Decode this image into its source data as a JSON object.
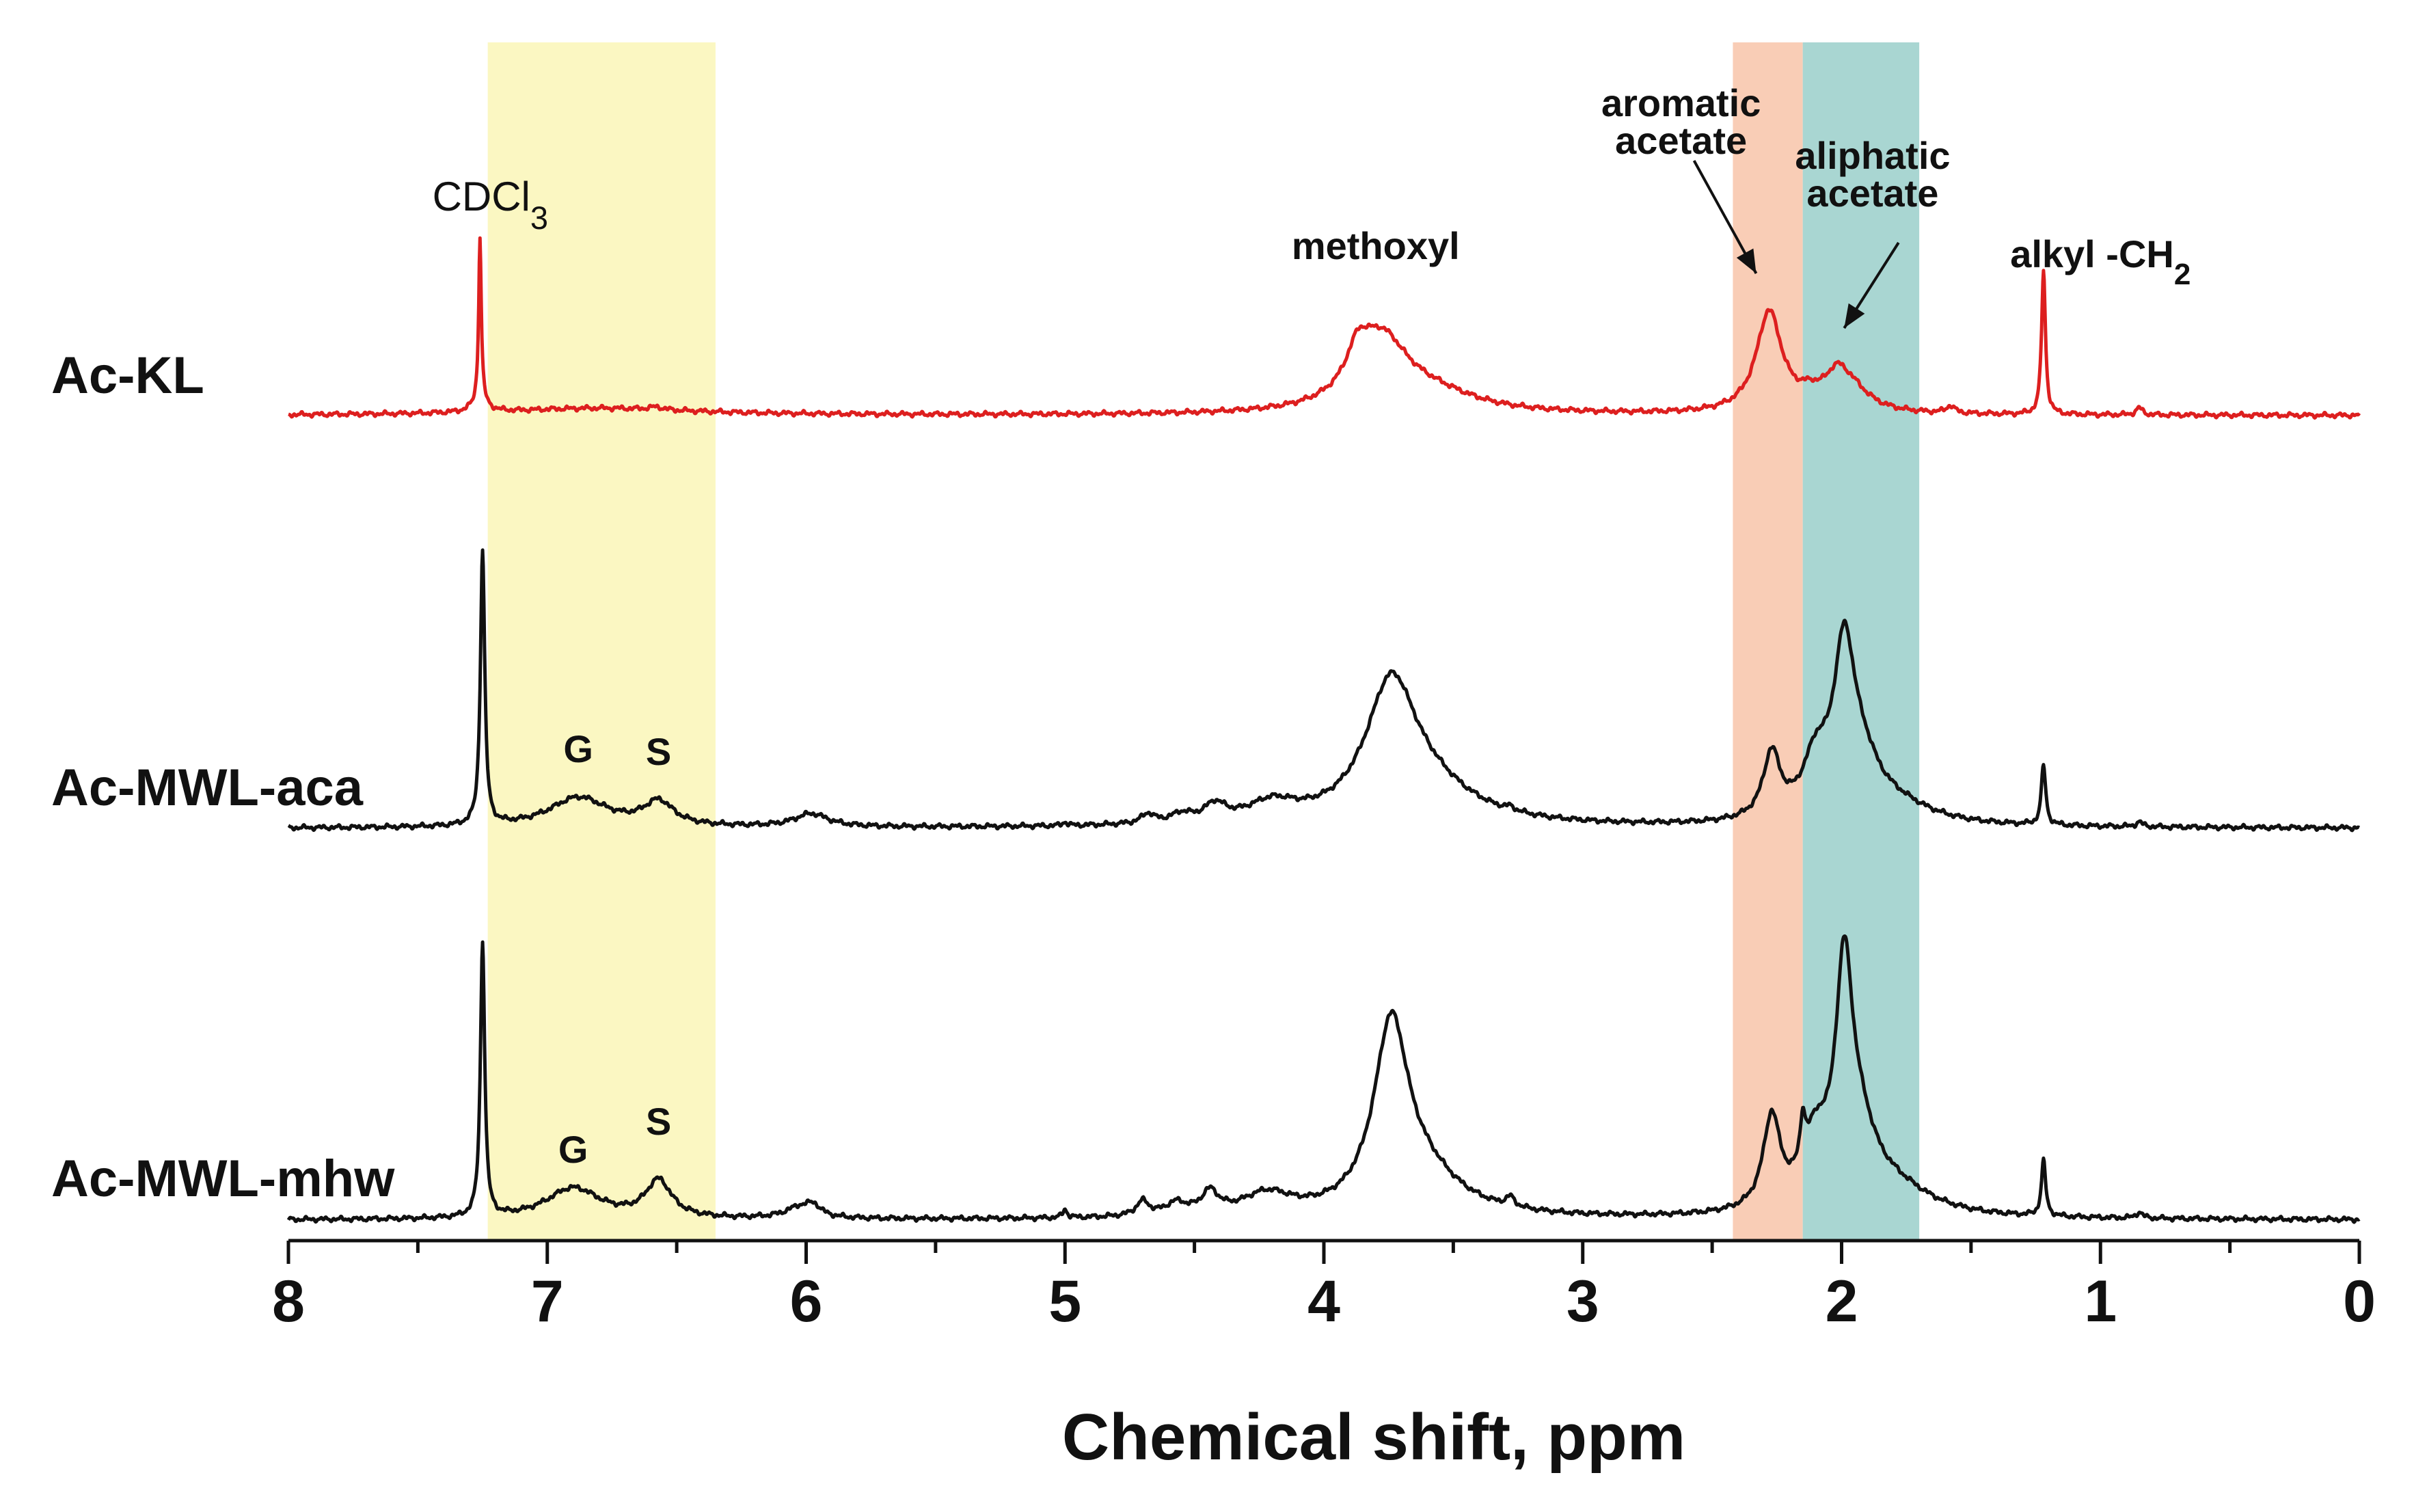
{
  "chart_data": {
    "type": "line",
    "xlabel": "Chemical shift, ppm",
    "xlim": [
      8,
      0
    ],
    "x_reversed": true,
    "xticks": [
      8,
      7,
      6,
      5,
      4,
      3,
      2,
      1,
      0
    ],
    "xtick_labels": [
      "8",
      "7",
      "6",
      "5",
      "4",
      "3",
      "2",
      "1",
      "0"
    ],
    "y_axis_visible": false,
    "regions": [
      {
        "name": "aromatic-region",
        "x_from": 7.23,
        "x_to": 6.35,
        "color": "#fbf7c2"
      },
      {
        "name": "aromatic-acetate-region",
        "x_from": 2.42,
        "x_to": 2.15,
        "color": "#f9cdb6"
      },
      {
        "name": "aliphatic-acetate-region",
        "x_from": 2.15,
        "x_to": 1.7,
        "color": "#a9d6d2"
      }
    ],
    "series": [
      {
        "name": "Ac-KL",
        "color": "#dd1f1f",
        "baseline": 0,
        "peaks": [
          {
            "center": 7.26,
            "height": 6.8,
            "width": 0.006
          },
          {
            "center": 7.26,
            "height": 0.5,
            "width": 0.03
          },
          {
            "center": 6.8,
            "height": 0.3,
            "width": 0.45
          },
          {
            "center": 6.58,
            "height": 0.12,
            "width": 0.03
          },
          {
            "center": 3.87,
            "height": 1.3,
            "width": 0.05
          },
          {
            "center": 3.78,
            "height": 3.0,
            "width": 0.13
          },
          {
            "center": 3.58,
            "height": 0.7,
            "width": 0.22
          },
          {
            "center": 2.28,
            "height": 4.2,
            "width": 0.06
          },
          {
            "center": 2.02,
            "height": 1.0,
            "width": 0.05
          },
          {
            "center": 1.97,
            "height": 1.05,
            "width": 0.09
          },
          {
            "center": 2.12,
            "height": 0.5,
            "width": 0.06
          },
          {
            "center": 1.58,
            "height": 0.3,
            "width": 0.02
          },
          {
            "center": 1.22,
            "height": 6.0,
            "width": 0.009
          },
          {
            "center": 0.85,
            "height": 0.3,
            "width": 0.015
          }
        ]
      },
      {
        "name": "Ac-MWL-aca",
        "color": "#111111",
        "baseline": 0,
        "peaks": [
          {
            "center": 7.25,
            "height": 11.5,
            "width": 0.01
          },
          {
            "center": 6.88,
            "height": 1.25,
            "width": 0.14
          },
          {
            "center": 6.57,
            "height": 1.0,
            "width": 0.07
          },
          {
            "center": 5.98,
            "height": 0.55,
            "width": 0.08
          },
          {
            "center": 5.0,
            "height": 0.15,
            "width": 0.01
          },
          {
            "center": 4.68,
            "height": 0.4,
            "width": 0.03
          },
          {
            "center": 4.55,
            "height": 0.35,
            "width": 0.05
          },
          {
            "center": 4.42,
            "height": 0.7,
            "width": 0.05
          },
          {
            "center": 4.2,
            "height": 0.8,
            "width": 0.12
          },
          {
            "center": 3.74,
            "height": 5.5,
            "width": 0.12
          },
          {
            "center": 3.6,
            "height": 1.3,
            "width": 0.22
          },
          {
            "center": 3.28,
            "height": 0.15,
            "width": 0.02
          },
          {
            "center": 2.27,
            "height": 2.7,
            "width": 0.04
          },
          {
            "center": 2.1,
            "height": 2.2,
            "width": 0.06
          },
          {
            "center": 1.99,
            "height": 6.6,
            "width": 0.05
          },
          {
            "center": 1.92,
            "height": 1.8,
            "width": 0.08
          },
          {
            "center": 1.8,
            "height": 0.8,
            "width": 0.18
          },
          {
            "center": 1.22,
            "height": 2.5,
            "width": 0.01
          },
          {
            "center": 0.85,
            "height": 0.2,
            "width": 0.015
          }
        ]
      },
      {
        "name": "Ac-MWL-mhw",
        "color": "#111111",
        "baseline": 0,
        "peaks": [
          {
            "center": 7.25,
            "height": 11.5,
            "width": 0.01
          },
          {
            "center": 6.9,
            "height": 1.3,
            "width": 0.13
          },
          {
            "center": 6.57,
            "height": 1.55,
            "width": 0.06
          },
          {
            "center": 6.02,
            "height": 0.5,
            "width": 0.07
          },
          {
            "center": 5.97,
            "height": 0.35,
            "width": 0.03
          },
          {
            "center": 5.0,
            "height": 0.35,
            "width": 0.01
          },
          {
            "center": 4.7,
            "height": 0.6,
            "width": 0.03
          },
          {
            "center": 4.57,
            "height": 0.5,
            "width": 0.05
          },
          {
            "center": 4.44,
            "height": 0.9,
            "width": 0.04
          },
          {
            "center": 4.22,
            "height": 0.9,
            "width": 0.12
          },
          {
            "center": 3.74,
            "height": 7.5,
            "width": 0.08
          },
          {
            "center": 3.62,
            "height": 1.6,
            "width": 0.18
          },
          {
            "center": 3.28,
            "height": 0.4,
            "width": 0.02
          },
          {
            "center": 2.27,
            "height": 3.8,
            "width": 0.04
          },
          {
            "center": 2.15,
            "height": 1.8,
            "width": 0.012
          },
          {
            "center": 2.1,
            "height": 2.5,
            "width": 0.06
          },
          {
            "center": 1.99,
            "height": 9.0,
            "width": 0.04
          },
          {
            "center": 1.93,
            "height": 2.6,
            "width": 0.08
          },
          {
            "center": 1.8,
            "height": 1.1,
            "width": 0.18
          },
          {
            "center": 1.22,
            "height": 2.3,
            "width": 0.01
          },
          {
            "center": 0.85,
            "height": 0.25,
            "width": 0.015
          }
        ]
      }
    ],
    "annotations": [
      {
        "name": "cdcl3",
        "text": "CDCl",
        "subscript": "3",
        "x": 7.18,
        "series": "Ac-KL"
      },
      {
        "name": "methoxyl",
        "text": "methoxyl",
        "x": 3.8,
        "series": "Ac-KL"
      },
      {
        "name": "aromatic-acetate-1",
        "text": "aromatic",
        "x": 2.62,
        "series": "Ac-KL"
      },
      {
        "name": "aromatic-acetate-2",
        "text": "acetate",
        "x": 2.62,
        "series": "Ac-KL"
      },
      {
        "name": "aliphatic-acetate-1",
        "text": "aliphatic",
        "x": 1.88,
        "series": "Ac-KL"
      },
      {
        "name": "aliphatic-acetate-2",
        "text": "acetate",
        "x": 1.88,
        "series": "Ac-KL"
      },
      {
        "name": "alkyl-ch2",
        "text": "alkyl -CH",
        "subscript": "2",
        "x": 1.0,
        "series": "Ac-KL"
      },
      {
        "name": "g-aca",
        "text": "G",
        "x": 6.88,
        "series": "Ac-MWL-aca"
      },
      {
        "name": "s-aca",
        "text": "S",
        "x": 6.57,
        "series": "Ac-MWL-aca"
      },
      {
        "name": "g-mhw",
        "text": "G",
        "x": 6.9,
        "series": "Ac-MWL-mhw"
      },
      {
        "name": "s-mhw",
        "text": "S",
        "x": 6.57,
        "series": "Ac-MWL-mhw"
      }
    ],
    "arrows": [
      {
        "name": "arrow-aromatic-acetate",
        "from_x": 2.57,
        "to_x": 2.33
      },
      {
        "name": "arrow-aliphatic-acetate",
        "from_x": 1.78,
        "to_x": 1.99
      }
    ]
  }
}
